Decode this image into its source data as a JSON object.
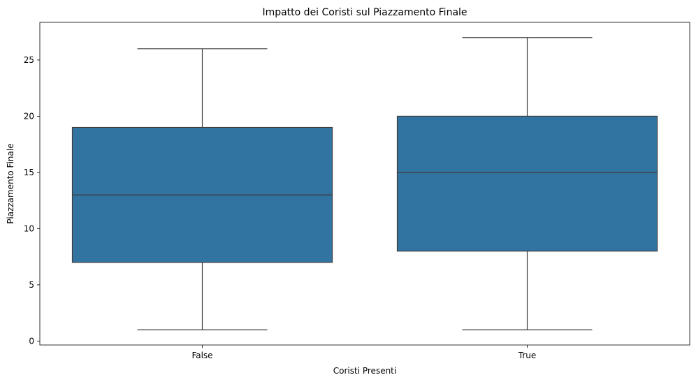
{
  "chart_data": {
    "type": "boxplot",
    "title": "Impatto dei Coristi sul Piazzamento Finale",
    "xlabel": "Coristi Presenti",
    "ylabel": "Piazzamento Finale",
    "categories": [
      "False",
      "True"
    ],
    "boxes": [
      {
        "category": "False",
        "whisker_low": 1,
        "q1": 7,
        "median": 13,
        "q3": 19,
        "whisker_high": 26
      },
      {
        "category": "True",
        "whisker_low": 1,
        "q1": 8,
        "median": 15,
        "q3": 20,
        "whisker_high": 27
      }
    ],
    "yticks": [
      0,
      5,
      10,
      15,
      20,
      25
    ],
    "ylim": [
      -0.35,
      28.35
    ],
    "grid": false,
    "legend": "none",
    "colors": {
      "box_fill": "#3274a1",
      "lines": "#3d3d3d",
      "axes": "#000000"
    }
  }
}
